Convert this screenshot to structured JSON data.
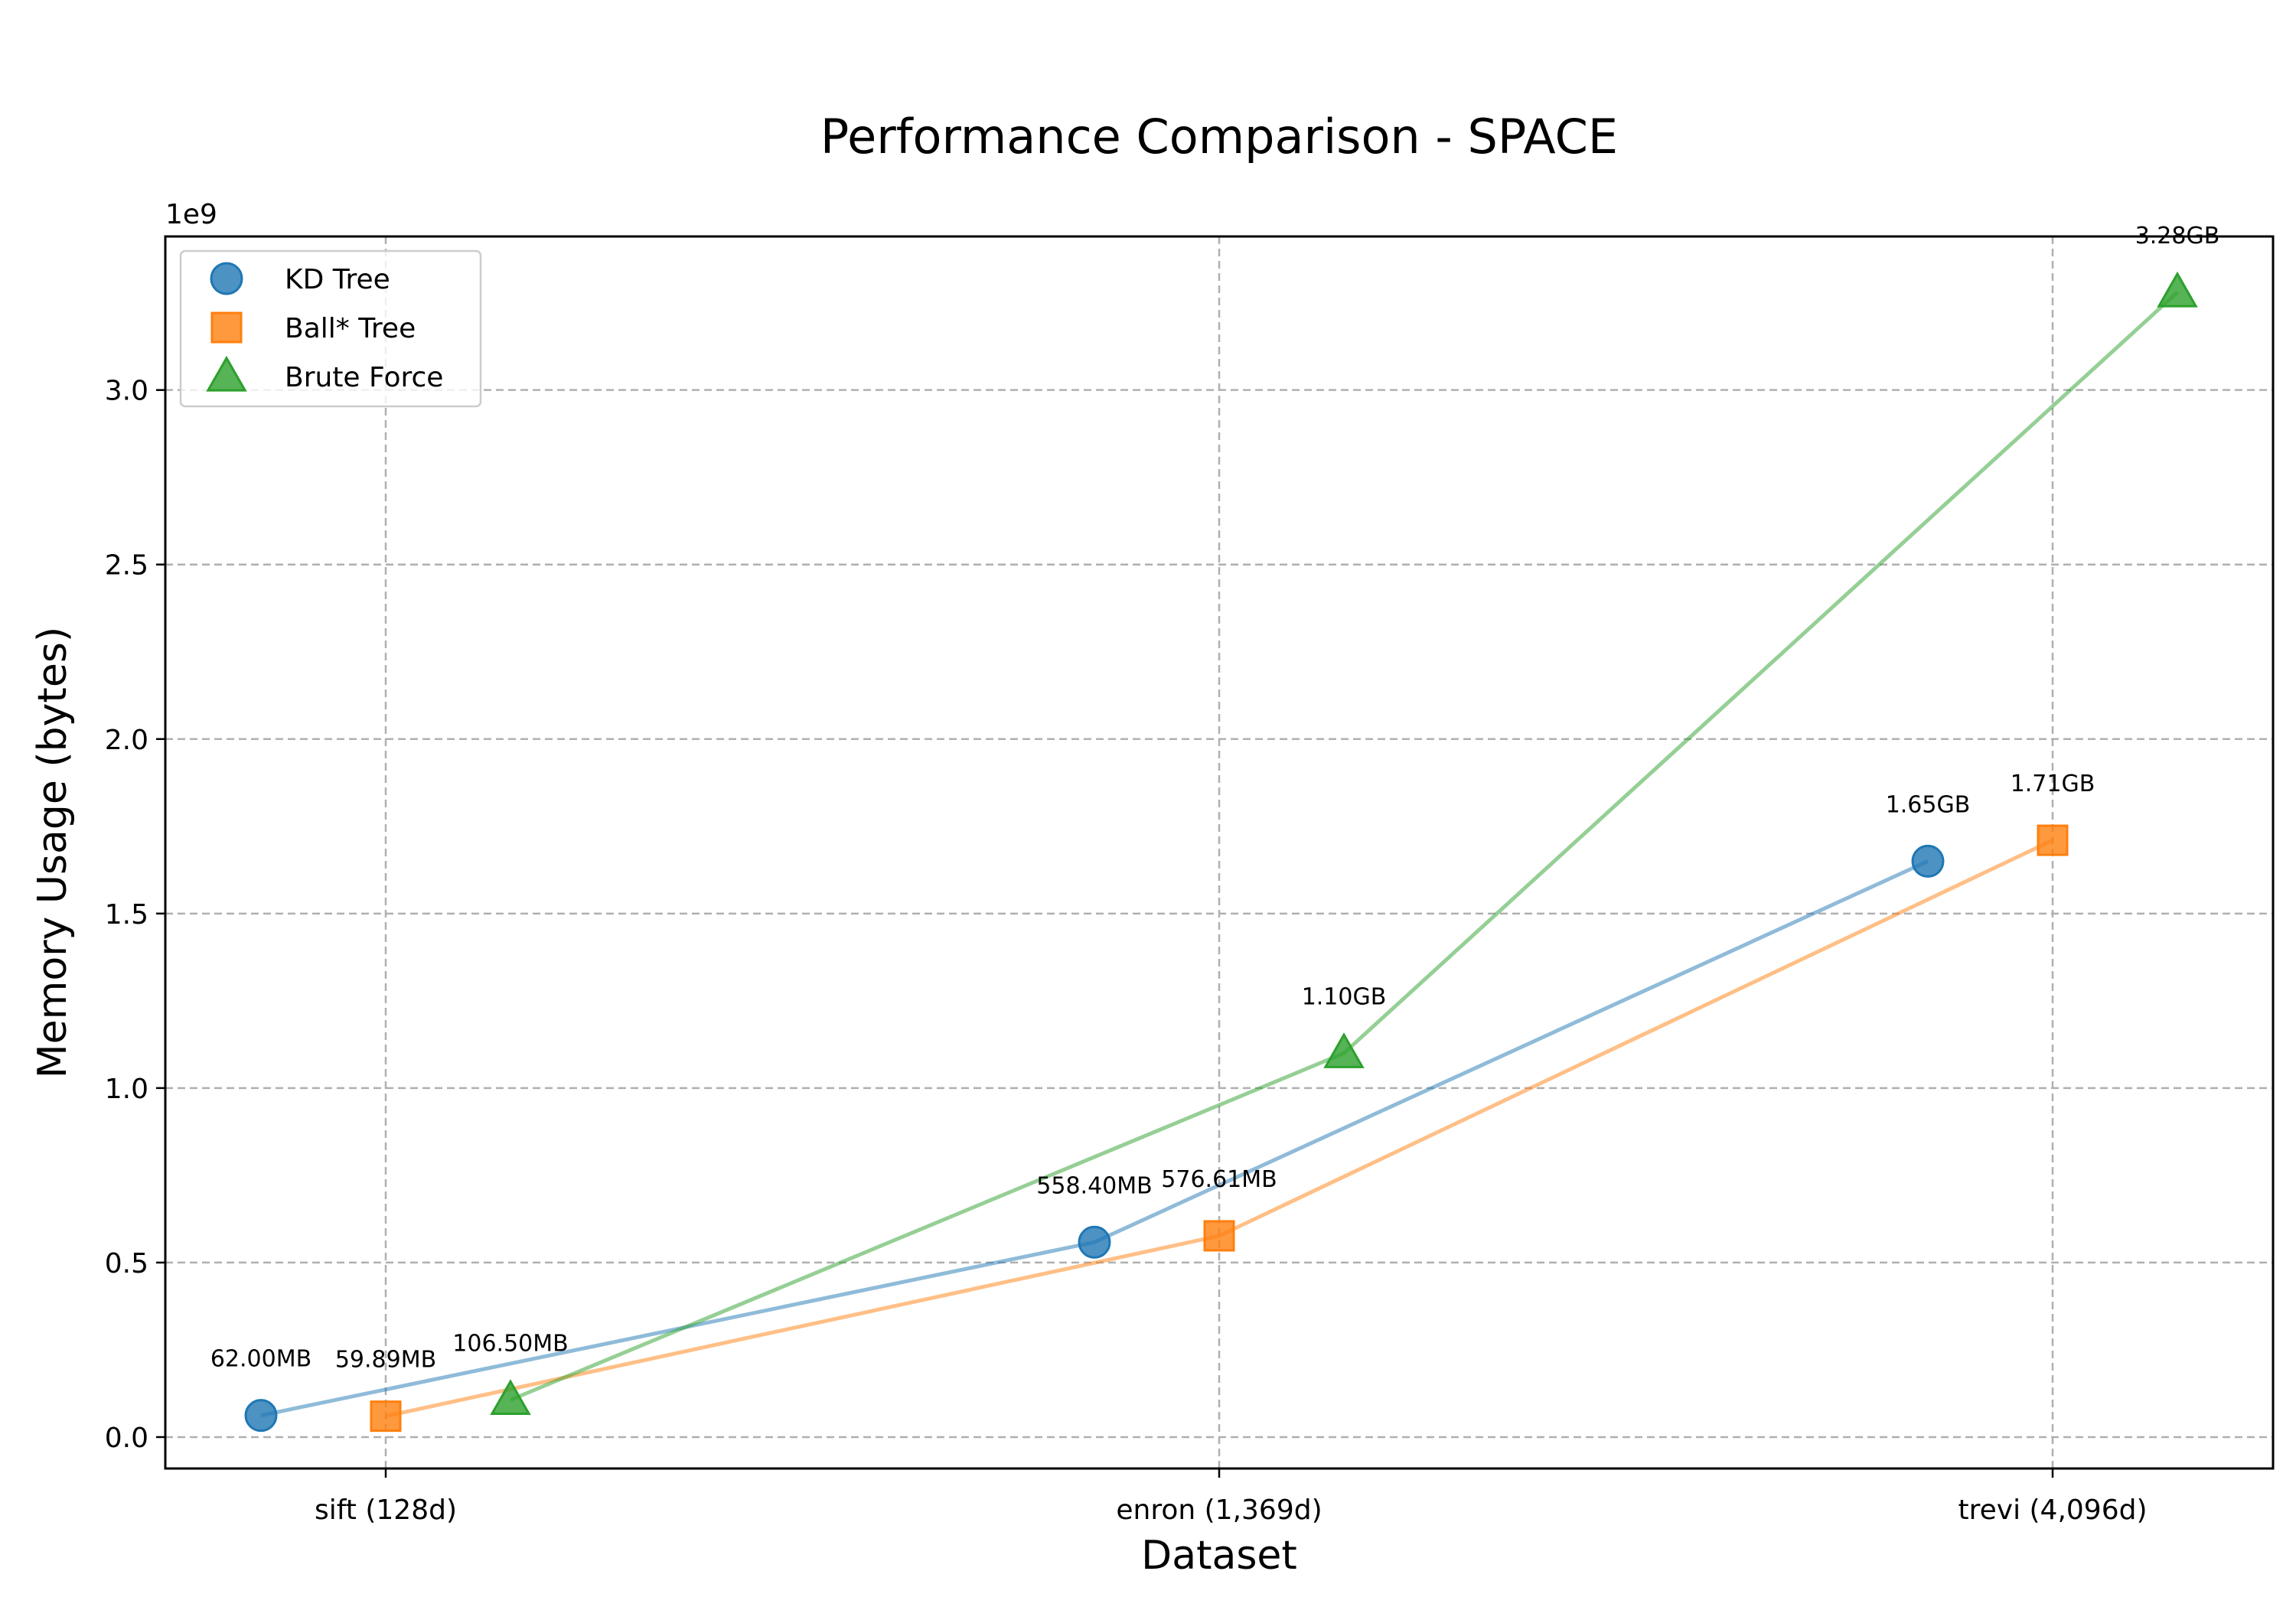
{
  "chart_data": {
    "type": "line",
    "title": "Performance Comparison - SPACE",
    "xlabel": "Dataset",
    "ylabel": "Memory Usage (bytes)",
    "y_offset_label": "1e9",
    "categories": [
      "sift (128d)",
      "enron (1,369d)",
      "trevi (4,096d)"
    ],
    "ylim": [
      -0.09,
      3.44
    ],
    "y_scale": 1000000000,
    "y_ticks": [
      0.0,
      0.5,
      1.0,
      1.5,
      2.0,
      2.5,
      3.0
    ],
    "y_tick_labels": [
      "0.0",
      "0.5",
      "1.0",
      "1.5",
      "2.0",
      "2.5",
      "3.0"
    ],
    "grid": true,
    "legend_position": "upper-left",
    "series": [
      {
        "name": "KD Tree",
        "marker": "circle",
        "color": "#1f77b4",
        "values": [
          62000000,
          558400000,
          1650000000
        ],
        "labels": [
          "62.00MB",
          "558.40MB",
          "1.65GB"
        ]
      },
      {
        "name": "Ball* Tree",
        "marker": "square",
        "color": "#ff7f0e",
        "values": [
          59890000,
          576610000,
          1710000000
        ],
        "labels": [
          "59.89MB",
          "576.61MB",
          "1.71GB"
        ]
      },
      {
        "name": "Brute Force",
        "marker": "triangle",
        "color": "#2ca02c",
        "values": [
          106500000,
          1100000000,
          3280000000
        ],
        "labels": [
          "106.50MB",
          "1.10GB",
          "3.28GB"
        ]
      }
    ]
  }
}
